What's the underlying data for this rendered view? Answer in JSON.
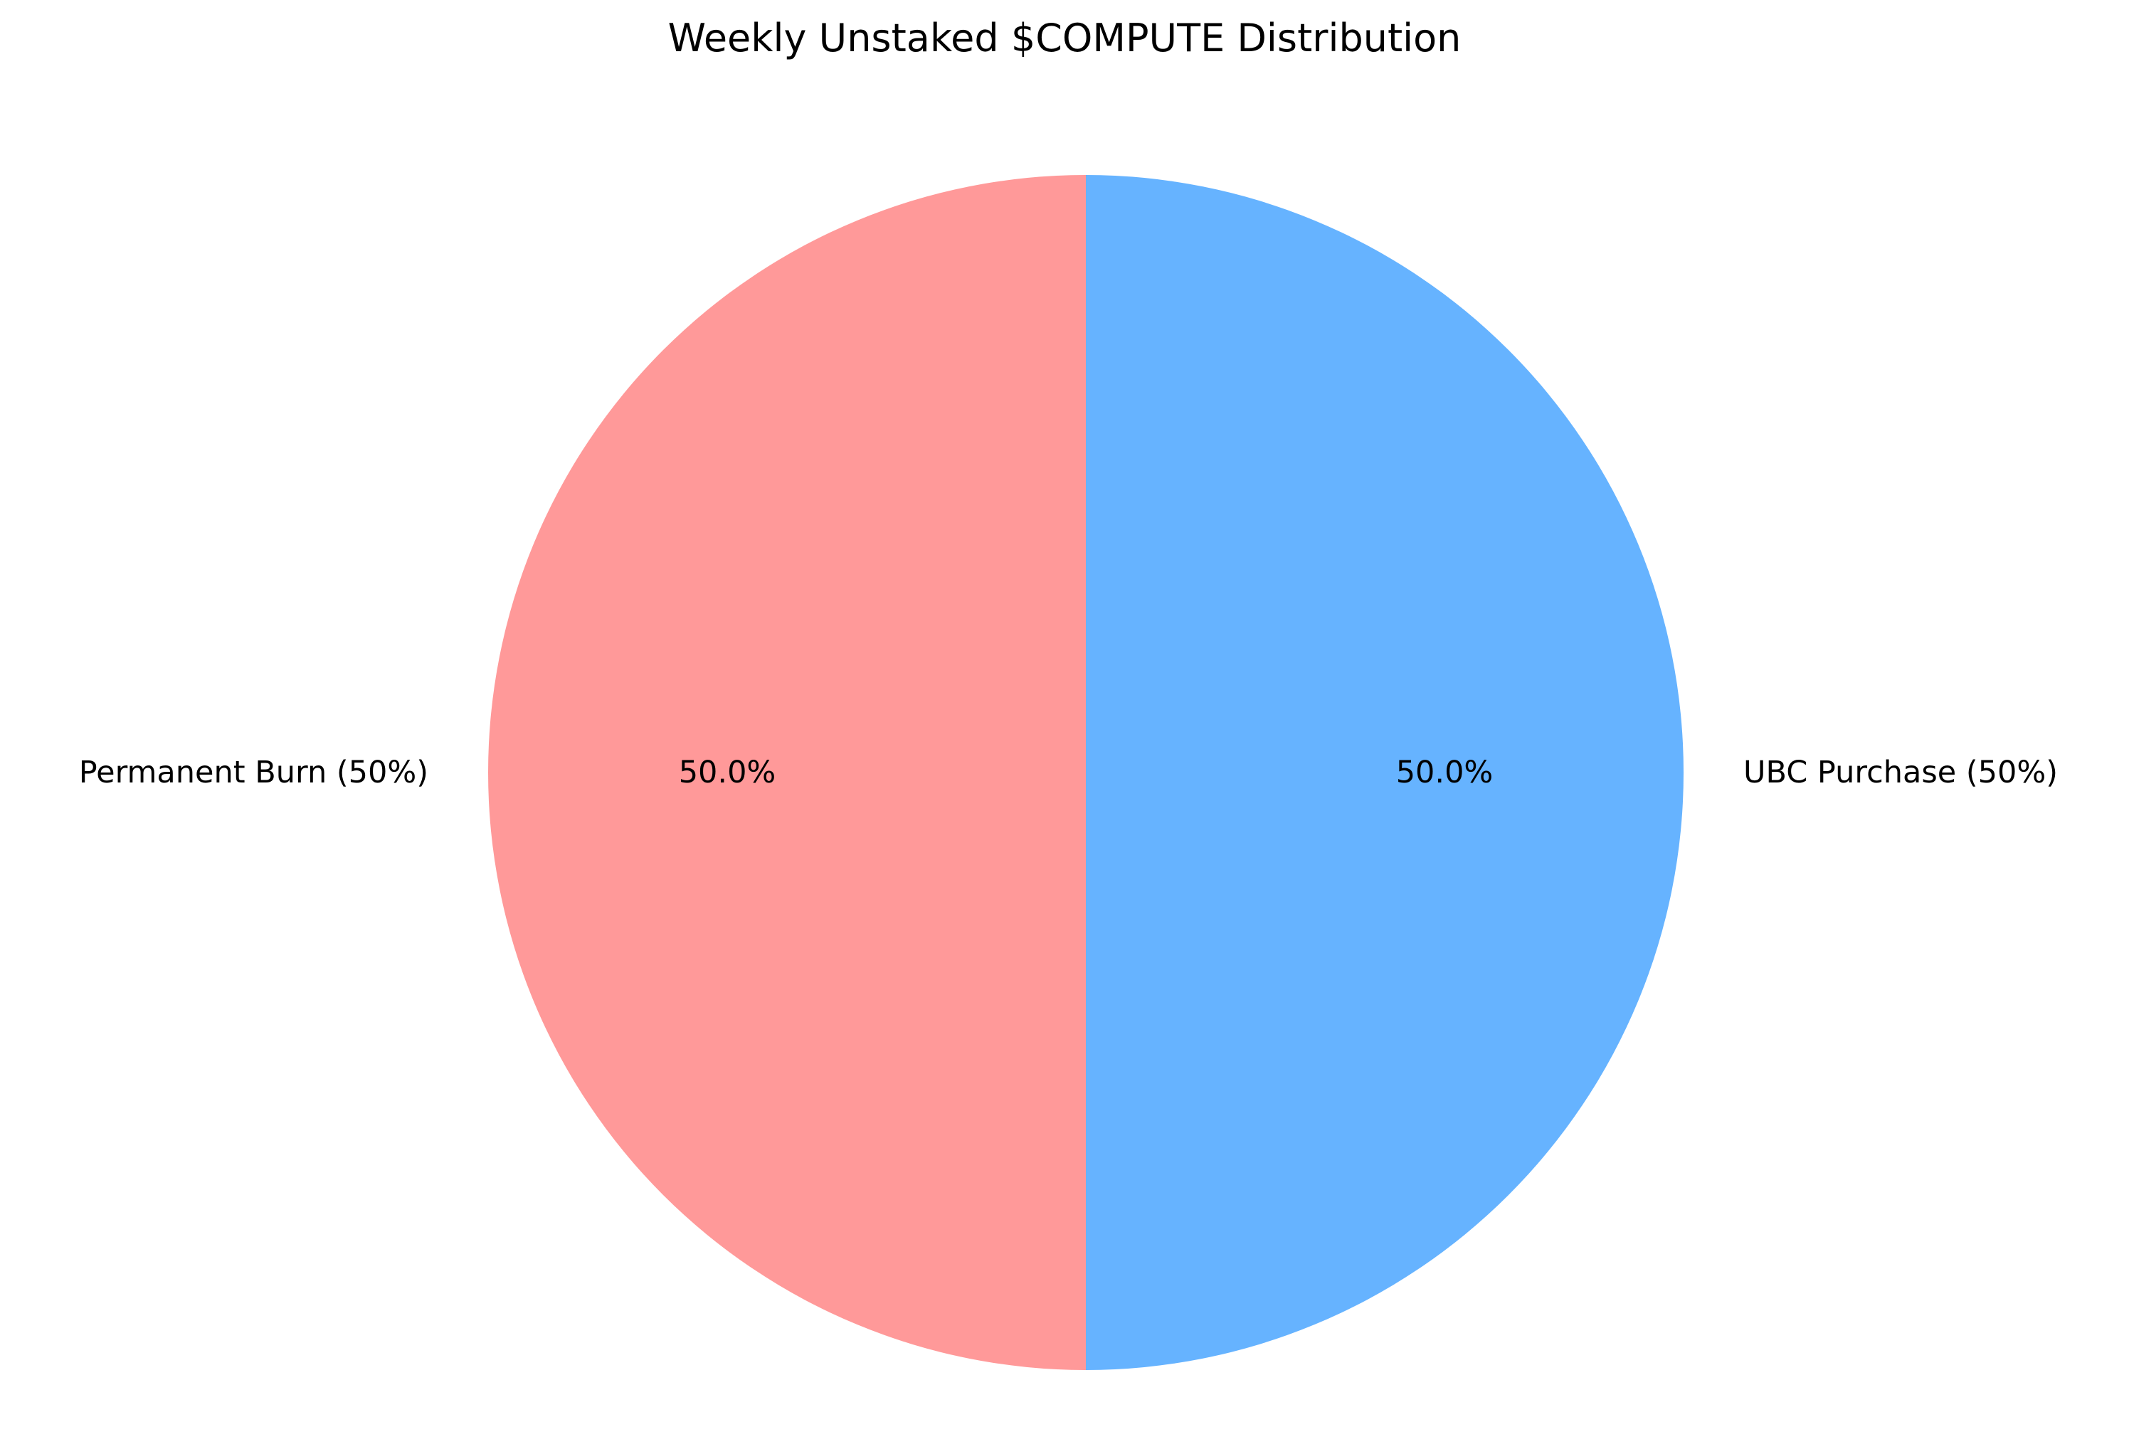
{
  "chart_data": {
    "type": "pie",
    "title": "Weekly Unstaked $COMPUTE Distribution",
    "start_angle_deg": 90,
    "direction": "clockwise",
    "slices": [
      {
        "label": "UBC Purchase (50%)",
        "value": 50,
        "pct_label": "50.0%",
        "color": "#66b3ff"
      },
      {
        "label": "Permanent Burn (50%)",
        "value": 50,
        "pct_label": "50.0%",
        "color": "#ff9999"
      }
    ]
  }
}
